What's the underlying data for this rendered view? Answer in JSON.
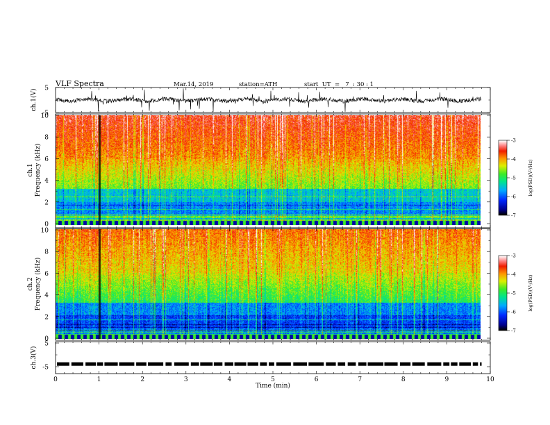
{
  "header": {
    "title": "VLF  Spectra",
    "date": "Mar.14, 2019",
    "station": "station=ATH",
    "start": "start  UT  =   7  : 30 : 1"
  },
  "chart_data": [
    {
      "type": "line",
      "panel": "ch1-waveform",
      "ylabel": "ch.1(V)",
      "ylim": [
        -5,
        5
      ],
      "yticks": [
        "5",
        "-5"
      ],
      "baseline": 0,
      "duration_min": 9.8
    },
    {
      "type": "heatmap",
      "panel": "ch1-spectrogram",
      "ylabel_line1": "ch.1",
      "ylabel_line2": "Frequency  (kHz)",
      "ylim": [
        0,
        10
      ],
      "yticks": [
        "10",
        "8",
        "6",
        "4",
        "2",
        "0"
      ],
      "colorbar_label": "log(PSD)(V²/Hz)",
      "colorbar_ticks": [
        "-3",
        "-4",
        "-5",
        "-6",
        "-7"
      ],
      "colorbar_range": [
        -7,
        -3
      ],
      "duration_min": 9.8
    },
    {
      "type": "heatmap",
      "panel": "ch2-spectrogram",
      "ylabel_line1": "ch.2",
      "ylabel_line2": "Frequency  (kHz)",
      "ylim": [
        0,
        10
      ],
      "yticks": [
        "10",
        "8",
        "6",
        "4",
        "2",
        "0"
      ],
      "colorbar_label": "log(PSD)(V²/Hz)",
      "colorbar_ticks": [
        "-3",
        "-4",
        "-5",
        "-6",
        "-7"
      ],
      "colorbar_range": [
        -7,
        -3
      ],
      "duration_min": 9.8
    },
    {
      "type": "line",
      "panel": "ch3-waveform",
      "ylabel": "ch.3(V)",
      "ylim": [
        -5,
        5
      ],
      "yticks": [
        "5",
        "-5"
      ],
      "level": -2,
      "duration_min": 9.8
    }
  ],
  "xaxis": {
    "label": "Time  (min)",
    "ticks": [
      "0",
      "1",
      "2",
      "3",
      "4",
      "5",
      "6",
      "7",
      "8",
      "9",
      "10"
    ],
    "range": [
      0,
      10
    ]
  }
}
